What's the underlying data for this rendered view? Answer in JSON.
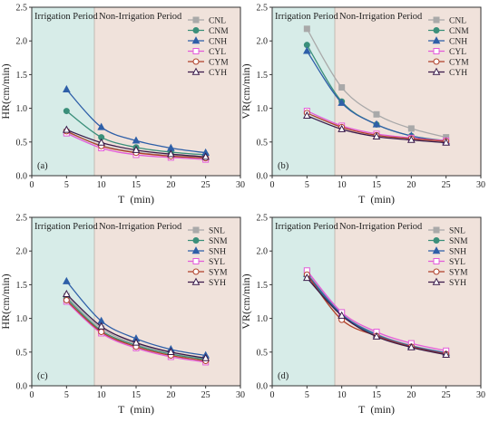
{
  "style": {
    "irrigation_bg": "#d7ece8",
    "non_irrigation_bg": "#f0e2db",
    "axis_color": "#333333"
  },
  "chart_data": [
    {
      "type": "line",
      "panel_label": "(a)",
      "xlabel": "T  (min)",
      "ylabel": "HR(cm/min)",
      "xlim": [
        0,
        30
      ],
      "ylim": [
        0,
        2.5
      ],
      "x_ticks": [
        0,
        5,
        10,
        15,
        20,
        25,
        30
      ],
      "y_ticks": [
        0,
        0.5,
        1,
        1.5,
        2,
        2.5
      ],
      "y_tick_labels": [
        "0.0",
        "0.5",
        "1.0",
        "1.5",
        "2.0",
        "2.5"
      ],
      "regions": [
        {
          "label": "Irrigation Period",
          "x_start": 0,
          "x_end": 9,
          "color": "#d7ece8"
        },
        {
          "label": "Non-Irrigation Period",
          "x_start": 9,
          "x_end": 30,
          "color": "#f0e2db"
        }
      ],
      "legend_position": "top-right",
      "grid": false,
      "x": [
        5,
        10,
        15,
        20,
        25
      ],
      "series": [
        {
          "name": "CNL",
          "color": "#a9a9a9",
          "marker": "square",
          "values": [
            0.65,
            0.45,
            0.35,
            0.3,
            0.27
          ]
        },
        {
          "name": "CNM",
          "color": "#3a8f7a",
          "marker": "circle",
          "values": [
            0.96,
            0.57,
            0.42,
            0.35,
            0.31
          ]
        },
        {
          "name": "CNH",
          "color": "#2e5fa8",
          "marker": "triangle",
          "values": [
            1.28,
            0.72,
            0.52,
            0.41,
            0.34
          ]
        },
        {
          "name": "CYL",
          "color": "#e35bd9",
          "marker": "square-open",
          "values": [
            0.63,
            0.41,
            0.31,
            0.27,
            0.24
          ]
        },
        {
          "name": "CYM",
          "color": "#b0402a",
          "marker": "circle-open",
          "values": [
            0.66,
            0.44,
            0.34,
            0.29,
            0.26
          ]
        },
        {
          "name": "CYH",
          "color": "#3a1a4a",
          "marker": "triangle-open",
          "values": [
            0.68,
            0.49,
            0.38,
            0.32,
            0.28
          ]
        }
      ]
    },
    {
      "type": "line",
      "panel_label": "(b)",
      "xlabel": "T  (min)",
      "ylabel": "VR(cm/min)",
      "xlim": [
        0,
        30
      ],
      "ylim": [
        0,
        2.5
      ],
      "x_ticks": [
        0,
        5,
        10,
        15,
        20,
        25,
        30
      ],
      "y_ticks": [
        0,
        0.5,
        1,
        1.5,
        2,
        2.5
      ],
      "y_tick_labels": [
        "0.0",
        "0.5",
        "1.0",
        "1.5",
        "2.0",
        "2.5"
      ],
      "regions": [
        {
          "label": "Irrigation Period",
          "x_start": 0,
          "x_end": 9,
          "color": "#d7ece8"
        },
        {
          "label": "Non-Irrigation Period",
          "x_start": 9,
          "x_end": 30,
          "color": "#f0e2db"
        }
      ],
      "legend_position": "top-right",
      "grid": false,
      "x": [
        5,
        10,
        15,
        20,
        25
      ],
      "series": [
        {
          "name": "CNL",
          "color": "#a9a9a9",
          "marker": "square",
          "values": [
            2.18,
            1.31,
            0.91,
            0.7,
            0.57
          ]
        },
        {
          "name": "CNM",
          "color": "#3a8f7a",
          "marker": "circle",
          "values": [
            1.94,
            1.1,
            0.76,
            0.59,
            0.52
          ]
        },
        {
          "name": "CNH",
          "color": "#2e5fa8",
          "marker": "triangle",
          "values": [
            1.85,
            1.08,
            0.76,
            0.59,
            0.51
          ]
        },
        {
          "name": "CYL",
          "color": "#e35bd9",
          "marker": "square-open",
          "values": [
            0.96,
            0.74,
            0.62,
            0.56,
            0.52
          ]
        },
        {
          "name": "CYM",
          "color": "#b0402a",
          "marker": "circle-open",
          "values": [
            0.93,
            0.72,
            0.6,
            0.55,
            0.51
          ]
        },
        {
          "name": "CYH",
          "color": "#3a1a4a",
          "marker": "triangle-open",
          "values": [
            0.89,
            0.69,
            0.58,
            0.53,
            0.49
          ]
        }
      ]
    },
    {
      "type": "line",
      "panel_label": "(c)",
      "xlabel": "T  (min)",
      "ylabel": "HR(cm/min)",
      "xlim": [
        0,
        30
      ],
      "ylim": [
        0,
        2.5
      ],
      "x_ticks": [
        0,
        5,
        10,
        15,
        20,
        25,
        30
      ],
      "y_ticks": [
        0,
        0.5,
        1,
        1.5,
        2,
        2.5
      ],
      "y_tick_labels": [
        "0.0",
        "0.5",
        "1.0",
        "1.5",
        "2.0",
        "2.5"
      ],
      "regions": [
        {
          "label": "Irrigation Period",
          "x_start": 0,
          "x_end": 9,
          "color": "#d7ece8"
        },
        {
          "label": "Non-Irrigation Period",
          "x_start": 9,
          "x_end": 30,
          "color": "#f0e2db"
        }
      ],
      "legend_position": "top-right",
      "grid": false,
      "x": [
        5,
        10,
        15,
        20,
        25
      ],
      "series": [
        {
          "name": "SNL",
          "color": "#a9a9a9",
          "marker": "square",
          "values": [
            1.33,
            0.85,
            0.62,
            0.49,
            0.4
          ]
        },
        {
          "name": "SNM",
          "color": "#3a8f7a",
          "marker": "circle",
          "values": [
            1.3,
            0.82,
            0.6,
            0.47,
            0.39
          ]
        },
        {
          "name": "SNH",
          "color": "#2e5fa8",
          "marker": "triangle",
          "values": [
            1.55,
            0.96,
            0.7,
            0.54,
            0.45
          ]
        },
        {
          "name": "SYL",
          "color": "#e35bd9",
          "marker": "square-open",
          "values": [
            1.25,
            0.78,
            0.56,
            0.43,
            0.35
          ]
        },
        {
          "name": "SYM",
          "color": "#b0402a",
          "marker": "circle-open",
          "values": [
            1.27,
            0.8,
            0.58,
            0.45,
            0.37
          ]
        },
        {
          "name": "SYH",
          "color": "#3a1a4a",
          "marker": "triangle-open",
          "values": [
            1.36,
            0.88,
            0.64,
            0.5,
            0.41
          ]
        }
      ]
    },
    {
      "type": "line",
      "panel_label": "(d)",
      "xlabel": "T  (min)",
      "ylabel": "VR(cm/min)",
      "xlim": [
        0,
        30
      ],
      "ylim": [
        0,
        2.5
      ],
      "x_ticks": [
        0,
        5,
        10,
        15,
        20,
        25,
        30
      ],
      "y_ticks": [
        0,
        0.5,
        1,
        1.5,
        2,
        2.5
      ],
      "y_tick_labels": [
        "0.0",
        "0.5",
        "1.0",
        "1.5",
        "2.0",
        "2.5"
      ],
      "regions": [
        {
          "label": "Irrigation Period",
          "x_start": 0,
          "x_end": 9,
          "color": "#d7ece8"
        },
        {
          "label": "Non-Irrigation Period",
          "x_start": 9,
          "x_end": 30,
          "color": "#f0e2db"
        }
      ],
      "legend_position": "top-right",
      "grid": false,
      "x": [
        5,
        10,
        15,
        20,
        25
      ],
      "series": [
        {
          "name": "SNL",
          "color": "#a9a9a9",
          "marker": "square",
          "values": [
            1.68,
            1.07,
            0.77,
            0.6,
            0.49
          ]
        },
        {
          "name": "SNM",
          "color": "#3a8f7a",
          "marker": "circle",
          "values": [
            1.64,
            1.05,
            0.75,
            0.59,
            0.48
          ]
        },
        {
          "name": "SNH",
          "color": "#2e5fa8",
          "marker": "triangle",
          "values": [
            1.66,
            1.06,
            0.76,
            0.59,
            0.49
          ]
        },
        {
          "name": "SYL",
          "color": "#e35bd9",
          "marker": "square-open",
          "values": [
            1.71,
            1.09,
            0.8,
            0.63,
            0.52
          ]
        },
        {
          "name": "SYM",
          "color": "#b0402a",
          "marker": "circle-open",
          "values": [
            1.65,
            0.98,
            0.74,
            0.58,
            0.47
          ]
        },
        {
          "name": "SYH",
          "color": "#3a1a4a",
          "marker": "triangle-open",
          "values": [
            1.6,
            1.04,
            0.73,
            0.57,
            0.46
          ]
        }
      ]
    }
  ]
}
